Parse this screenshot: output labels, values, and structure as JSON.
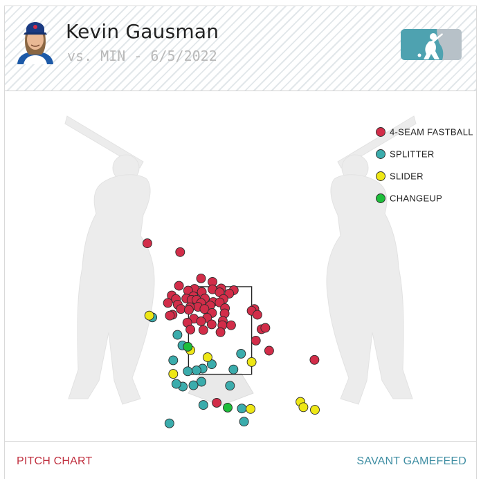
{
  "header": {
    "player_name": "Kevin Gausman",
    "matchup": "vs. MIN - 6/5/2022",
    "avatar_icon": "player-headshot-icon",
    "logo_icon": "mlb-logo-icon"
  },
  "footer": {
    "left_link": "PITCH CHART",
    "right_link": "SAVANT GAMEFEED"
  },
  "chart_data": {
    "type": "scatter",
    "title": "",
    "xlabel": "",
    "ylabel": "",
    "xlim": [
      -2.5,
      2.5
    ],
    "ylim": [
      0,
      5
    ],
    "grid": false,
    "legend_position": "top-right",
    "strike_zone": {
      "x": [
        -0.83,
        0.83
      ],
      "z": [
        1.5,
        3.5
      ]
    },
    "series": [
      {
        "name": "4-SEAM FASTBALL",
        "color": "#d22d49",
        "points": [
          [
            -1.91,
            4.49
          ],
          [
            -1.05,
            4.29
          ],
          [
            -0.5,
            3.69
          ],
          [
            -0.2,
            3.61
          ],
          [
            -1.08,
            3.52
          ],
          [
            -0.67,
            3.45
          ],
          [
            -0.2,
            3.44
          ],
          [
            0.03,
            3.46
          ],
          [
            0.36,
            3.42
          ],
          [
            -0.84,
            3.41
          ],
          [
            -0.48,
            3.38
          ],
          [
            0.24,
            3.34
          ],
          [
            -0.01,
            3.37
          ],
          [
            -1.27,
            3.3
          ],
          [
            -0.7,
            3.28
          ],
          [
            -0.89,
            3.23
          ],
          [
            -1.16,
            3.22
          ],
          [
            -0.75,
            3.2
          ],
          [
            -0.4,
            3.23
          ],
          [
            -0.62,
            3.2
          ],
          [
            0.09,
            3.22
          ],
          [
            -0.18,
            3.15
          ],
          [
            -1.37,
            3.13
          ],
          [
            -0.5,
            3.13
          ],
          [
            -1.11,
            3.09
          ],
          [
            -0.01,
            3.14
          ],
          [
            -0.26,
            3.07
          ],
          [
            -0.58,
            3.04
          ],
          [
            -0.79,
            3.03
          ],
          [
            -1.03,
            2.99
          ],
          [
            -0.41,
            2.99
          ],
          [
            0.13,
            3.01
          ],
          [
            0.9,
            2.99
          ],
          [
            0.83,
            2.95
          ],
          [
            -0.82,
            2.97
          ],
          [
            -1.25,
            2.86
          ],
          [
            -0.21,
            2.9
          ],
          [
            0.12,
            2.89
          ],
          [
            -1.32,
            2.84
          ],
          [
            0.98,
            2.86
          ],
          [
            -0.34,
            2.79
          ],
          [
            -0.69,
            2.77
          ],
          [
            -0.5,
            2.71
          ],
          [
            -0.22,
            2.64
          ],
          [
            0.07,
            2.72
          ],
          [
            -0.86,
            2.68
          ],
          [
            0.29,
            2.62
          ],
          [
            0.06,
            2.62
          ],
          [
            -0.78,
            2.52
          ],
          [
            -0.44,
            2.51
          ],
          [
            0.01,
            2.46
          ],
          [
            1.09,
            2.53
          ],
          [
            1.19,
            2.56
          ],
          [
            0.94,
            2.27
          ],
          [
            1.29,
            2.04
          ],
          [
            2.48,
            1.83
          ],
          [
            -0.09,
            0.85
          ]
        ]
      },
      {
        "name": "SPLITTER",
        "color": "#3bacac",
        "points": [
          [
            -1.78,
            2.8
          ],
          [
            -1.12,
            2.4
          ],
          [
            -0.99,
            2.16
          ],
          [
            0.55,
            1.97
          ],
          [
            -1.23,
            1.82
          ],
          [
            -0.22,
            1.73
          ],
          [
            -0.46,
            1.63
          ],
          [
            -0.62,
            1.59
          ],
          [
            -0.85,
            1.57
          ],
          [
            0.35,
            1.61
          ],
          [
            -0.49,
            1.33
          ],
          [
            -0.98,
            1.22
          ],
          [
            -1.15,
            1.28
          ],
          [
            -0.7,
            1.25
          ],
          [
            0.26,
            1.24
          ],
          [
            -0.44,
            0.8
          ],
          [
            0.57,
            0.72
          ],
          [
            -1.33,
            0.38
          ],
          [
            0.63,
            0.42
          ]
        ]
      },
      {
        "name": "SLIDER",
        "color": "#eee716",
        "points": [
          [
            -1.86,
            2.84
          ],
          [
            -0.78,
            2.05
          ],
          [
            -0.33,
            1.89
          ],
          [
            0.83,
            1.78
          ],
          [
            -1.23,
            1.51
          ],
          [
            2.11,
            0.87
          ],
          [
            2.19,
            0.75
          ],
          [
            0.8,
            0.71
          ],
          [
            2.49,
            0.69
          ]
        ]
      },
      {
        "name": "CHANGEUP",
        "color": "#1dbe3a",
        "points": [
          [
            -0.85,
            2.13
          ],
          [
            0.2,
            0.74
          ]
        ]
      }
    ]
  }
}
